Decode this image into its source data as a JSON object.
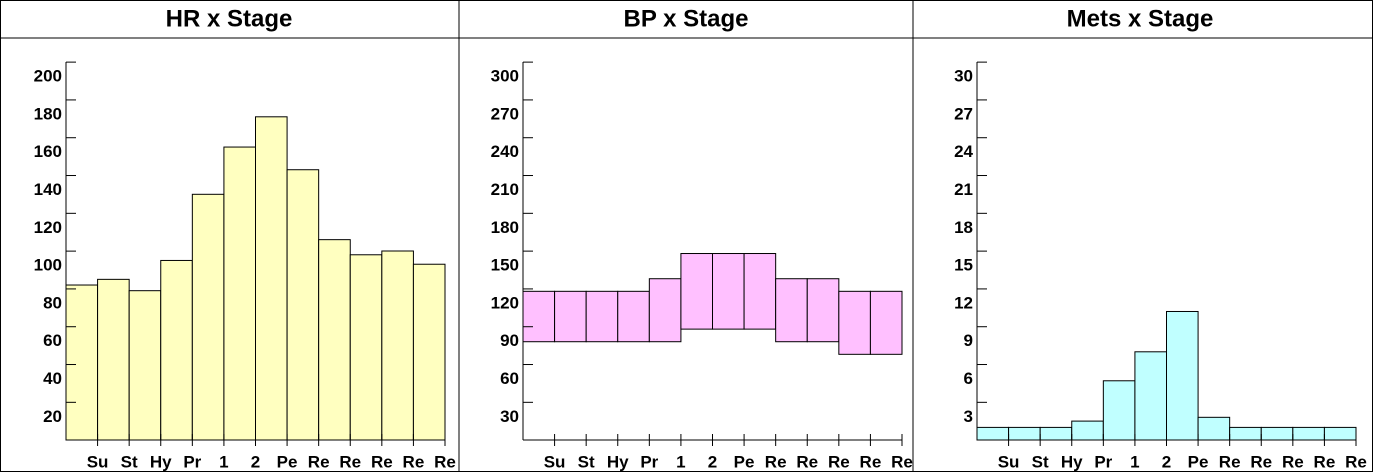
{
  "chart_data": [
    {
      "type": "bar",
      "title": "HR x Stage",
      "color": "#ffffc0",
      "categories": [
        "Su",
        "St",
        "Hy",
        "Pr",
        "1",
        "2",
        "Pe",
        "Re",
        "Re",
        "Re",
        "Re",
        "Re"
      ],
      "values": [
        90,
        93,
        87,
        103,
        138,
        163,
        179,
        151,
        114,
        106,
        108,
        101
      ],
      "ylim": [
        8,
        208
      ],
      "yticks": [
        20,
        40,
        60,
        80,
        100,
        120,
        140,
        160,
        180,
        200
      ]
    },
    {
      "type": "range_bar",
      "title": "BP x Stage",
      "color": "#ffc0ff",
      "categories": [
        "Su",
        "St",
        "Hy",
        "Pr",
        "1",
        "2",
        "Pe",
        "Re",
        "Re",
        "Re",
        "Re",
        "Re"
      ],
      "low": [
        90,
        90,
        90,
        90,
        90,
        100,
        100,
        100,
        90,
        90,
        80,
        80
      ],
      "high": [
        130,
        130,
        130,
        130,
        140,
        160,
        160,
        160,
        140,
        140,
        130,
        130
      ],
      "ylim": [
        12,
        312
      ],
      "yticks": [
        30,
        60,
        90,
        120,
        150,
        180,
        210,
        240,
        270,
        300
      ]
    },
    {
      "type": "bar",
      "title": "Mets x Stage",
      "color": "#c0ffff",
      "categories": [
        "Su",
        "St",
        "Hy",
        "Pr",
        "1",
        "2",
        "Pe",
        "Re",
        "Re",
        "Re",
        "Re",
        "Re"
      ],
      "values": [
        2.2,
        2.2,
        2.2,
        2.7,
        5.9,
        8.2,
        11.4,
        3.0,
        2.2,
        2.2,
        2.2,
        2.2
      ],
      "ylim": [
        1.2,
        31.2
      ],
      "yticks": [
        3,
        6,
        9,
        12,
        15,
        18,
        21,
        24,
        27,
        30
      ]
    }
  ]
}
